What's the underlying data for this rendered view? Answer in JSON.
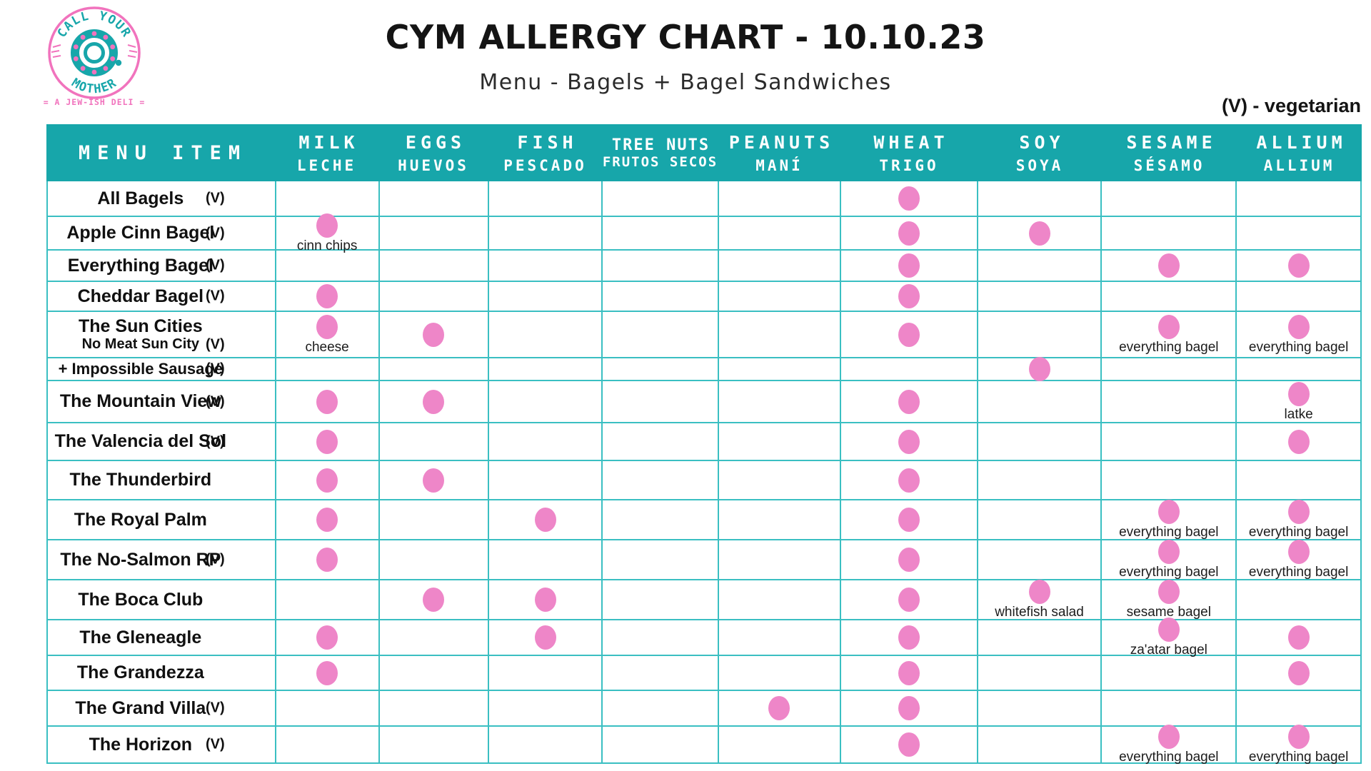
{
  "page": {
    "title": "CYM ALLERGY CHART - 10.10.23",
    "subtitle": "Menu - Bagels + Bagel Sandwiches",
    "legend": "(V) - vegetarian"
  },
  "logo": {
    "arc_top": "CALL YOUR",
    "arc_bottom": "MOTHER",
    "tagline": "= A JEW-ISH DELI ="
  },
  "colors": {
    "header_teal": "#17a6aa",
    "grid_teal": "#3abfc2",
    "dot_pink": "#ee86c8",
    "logo_pink": "#f173bd",
    "logo_teal": "#17a6aa"
  },
  "table": {
    "menu_header": "MENU ITEM",
    "veg_marker": "(V)",
    "columns": [
      {
        "id": "milk",
        "en": "MILK",
        "es": "LECHE"
      },
      {
        "id": "eggs",
        "en": "EGGS",
        "es": "HUEVOS"
      },
      {
        "id": "fish",
        "en": "FISH",
        "es": "PESCADO"
      },
      {
        "id": "treenuts",
        "en": "TREE NUTS",
        "es": "FRUTOS SECOS"
      },
      {
        "id": "peanuts",
        "en": "PEANUTS",
        "es": "MANÍ"
      },
      {
        "id": "wheat",
        "en": "WHEAT",
        "es": "TRIGO"
      },
      {
        "id": "soy",
        "en": "SOY",
        "es": "SOYA"
      },
      {
        "id": "sesame",
        "en": "SESAME",
        "es": "SÉSAMO"
      },
      {
        "id": "allium",
        "en": "ALLIUM",
        "es": "ALLIUM"
      }
    ],
    "rows": [
      {
        "name": "All Bagels",
        "veg": true,
        "marks": [
          {
            "col": "wheat"
          }
        ]
      },
      {
        "name": "Apple Cinn Bagel",
        "veg": true,
        "marks": [
          {
            "col": "milk",
            "note": "cinn chips"
          },
          {
            "col": "wheat"
          },
          {
            "col": "soy"
          }
        ]
      },
      {
        "name": "Everything Bagel",
        "veg": true,
        "marks": [
          {
            "col": "wheat"
          },
          {
            "col": "sesame"
          },
          {
            "col": "allium"
          }
        ]
      },
      {
        "name": "Cheddar Bagel",
        "veg": true,
        "marks": [
          {
            "col": "milk"
          },
          {
            "col": "wheat"
          }
        ]
      },
      {
        "name": "The Sun Cities",
        "sub": "No Meat Sun City",
        "sub_veg": true,
        "marks": [
          {
            "col": "milk",
            "note": "cheese"
          },
          {
            "col": "eggs"
          },
          {
            "col": "wheat"
          },
          {
            "col": "sesame",
            "note": "everything bagel"
          },
          {
            "col": "allium",
            "note": "everything bagel"
          }
        ]
      },
      {
        "name": "+ Impossible Sausage",
        "veg": true,
        "small": true,
        "marks": [
          {
            "col": "soy"
          }
        ]
      },
      {
        "name": "The Mountain View",
        "veg": true,
        "marks": [
          {
            "col": "milk"
          },
          {
            "col": "eggs"
          },
          {
            "col": "wheat"
          },
          {
            "col": "allium",
            "note": "latke"
          }
        ]
      },
      {
        "name": "The Valencia del Sol",
        "veg": true,
        "marks": [
          {
            "col": "milk"
          },
          {
            "col": "wheat"
          },
          {
            "col": "allium"
          }
        ]
      },
      {
        "name": "The Thunderbird",
        "marks": [
          {
            "col": "milk"
          },
          {
            "col": "eggs"
          },
          {
            "col": "wheat"
          }
        ]
      },
      {
        "name": "The Royal Palm",
        "marks": [
          {
            "col": "milk"
          },
          {
            "col": "fish"
          },
          {
            "col": "wheat"
          },
          {
            "col": "sesame",
            "note": "everything bagel"
          },
          {
            "col": "allium",
            "note": "everything bagel"
          }
        ]
      },
      {
        "name": "The No-Salmon RP",
        "veg": true,
        "marks": [
          {
            "col": "milk"
          },
          {
            "col": "wheat"
          },
          {
            "col": "sesame",
            "note": "everything bagel"
          },
          {
            "col": "allium",
            "note": "everything bagel"
          }
        ]
      },
      {
        "name": "The Boca Club",
        "marks": [
          {
            "col": "eggs"
          },
          {
            "col": "fish"
          },
          {
            "col": "wheat"
          },
          {
            "col": "soy",
            "note": "whitefish salad"
          },
          {
            "col": "sesame",
            "note": "sesame bagel"
          }
        ]
      },
      {
        "name": "The Gleneagle",
        "marks": [
          {
            "col": "milk"
          },
          {
            "col": "fish"
          },
          {
            "col": "wheat"
          },
          {
            "col": "sesame",
            "note": "za'atar bagel"
          },
          {
            "col": "allium"
          }
        ]
      },
      {
        "name": "The Grandezza",
        "marks": [
          {
            "col": "milk"
          },
          {
            "col": "wheat"
          },
          {
            "col": "allium"
          }
        ]
      },
      {
        "name": "The Grand Villa",
        "veg": true,
        "marks": [
          {
            "col": "peanuts"
          },
          {
            "col": "wheat"
          }
        ]
      },
      {
        "name": "The Horizon",
        "veg": true,
        "marks": [
          {
            "col": "wheat"
          },
          {
            "col": "sesame",
            "note": "everything bagel"
          },
          {
            "col": "allium",
            "note": "everything bagel"
          }
        ]
      }
    ]
  }
}
